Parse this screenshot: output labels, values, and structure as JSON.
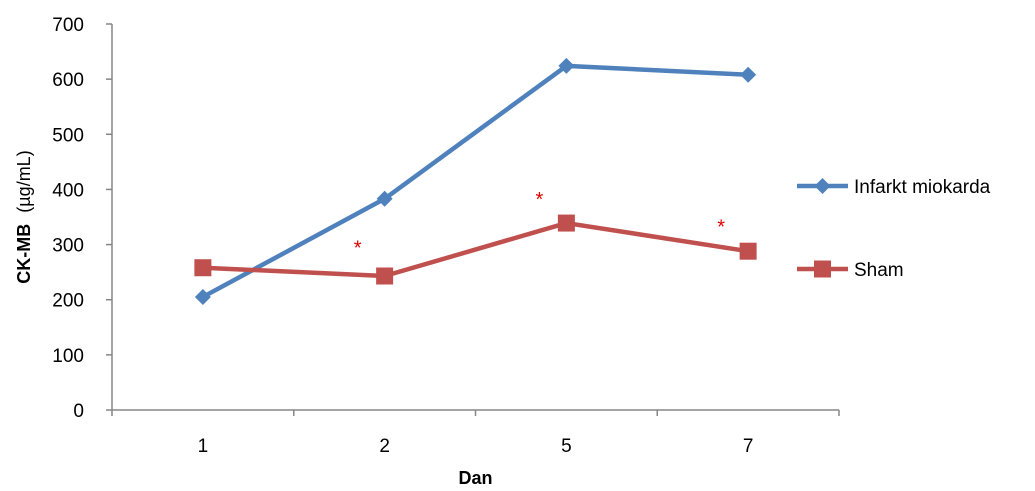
{
  "chart_data": {
    "type": "line",
    "categories": [
      "1",
      "2",
      "5",
      "7"
    ],
    "xlabel": "Dan",
    "ylabel_main": "CK-MB",
    "ylabel_unit": "(µg/mL)",
    "ylim": [
      0,
      700
    ],
    "yticks": [
      0,
      100,
      200,
      300,
      400,
      500,
      600,
      700
    ],
    "grid": false,
    "legend_position": "right",
    "series": [
      {
        "name": "Infarkt miokarda",
        "values": [
          205,
          383,
          624,
          608
        ],
        "color": "#4f81bd",
        "marker": "diamond"
      },
      {
        "name": "Sham",
        "values": [
          258,
          243,
          339,
          288
        ],
        "color": "#c0504d",
        "marker": "square"
      }
    ],
    "annotations": [
      {
        "text": "*",
        "category": "2",
        "value": 298,
        "color": "#e00000"
      },
      {
        "text": "*",
        "category": "5",
        "value": 386,
        "color": "#e00000"
      },
      {
        "text": "*",
        "category": "7",
        "value": 336,
        "color": "#e00000"
      }
    ]
  }
}
